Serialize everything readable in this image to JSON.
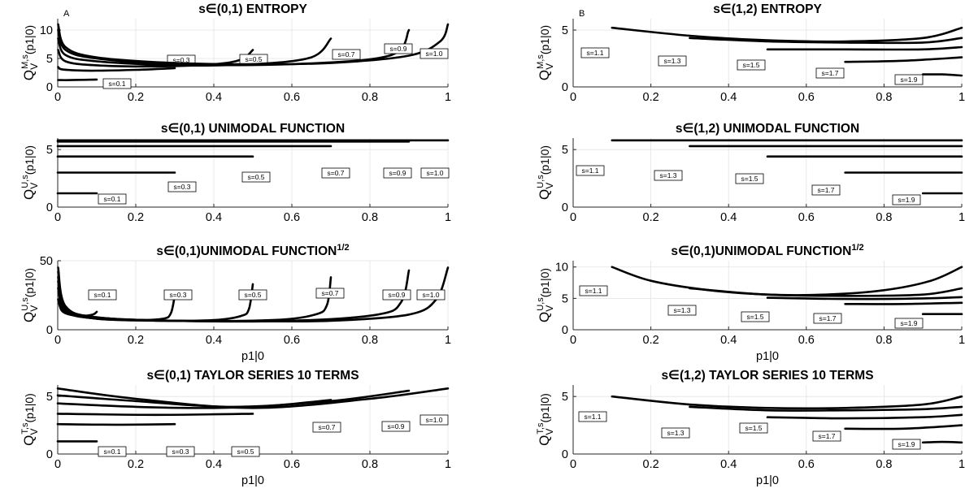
{
  "chart_data": [
    {
      "type": "line",
      "panel_label": "A",
      "title": "s∈(0,1) ENTROPY",
      "ylabel": "Q_V^{M,s}(p1|0)",
      "ylabel_main": "Q",
      "ylabel_sup": "M,s",
      "ylabel_sub": "V",
      "ylabel_rest": "(p1|0)",
      "xlabel": "",
      "xlim": [
        0,
        1
      ],
      "ylim": [
        0,
        12
      ],
      "xticks": [
        0,
        0.2,
        0.4,
        0.6,
        0.8,
        1
      ],
      "xtick_labels": [
        "0",
        "0.2",
        "0.4",
        "0.6",
        "0.8",
        "1"
      ],
      "yticks": [
        0,
        5,
        10
      ],
      "ytick_labels": [
        "0",
        "5",
        "10"
      ],
      "series": [
        {
          "label": "s=0.1",
          "x": [
            0.001,
            0.01,
            0.03,
            0.06,
            0.1
          ],
          "y": [
            1.2,
            1.2,
            1.2,
            1.25,
            1.3
          ]
        },
        {
          "label": "s=0.3",
          "x": [
            0.001,
            0.01,
            0.05,
            0.1,
            0.2,
            0.3
          ],
          "y": [
            3.5,
            3.1,
            2.9,
            2.85,
            3.0,
            3.3
          ]
        },
        {
          "label": "s=0.5",
          "x": [
            0.001,
            0.02,
            0.1,
            0.25,
            0.4,
            0.47,
            0.5
          ],
          "y": [
            6.5,
            4.5,
            3.8,
            3.6,
            4.0,
            4.8,
            6.5
          ]
        },
        {
          "label": "s=0.7",
          "x": [
            0.001,
            0.02,
            0.1,
            0.3,
            0.5,
            0.65,
            0.7
          ],
          "y": [
            8.5,
            5.6,
            4.5,
            3.8,
            4.0,
            5.2,
            8.5
          ]
        },
        {
          "label": "s=0.9",
          "x": [
            0.001,
            0.02,
            0.1,
            0.3,
            0.6,
            0.85,
            0.9
          ],
          "y": [
            10.0,
            6.5,
            5.0,
            4.0,
            4.0,
            5.5,
            10.0
          ]
        },
        {
          "label": "s=1.0",
          "x": [
            0.001,
            0.02,
            0.1,
            0.3,
            0.5,
            0.7,
            0.9,
            0.98,
            1.0
          ],
          "y": [
            11.0,
            7.0,
            5.2,
            4.2,
            4.0,
            4.2,
            5.5,
            8.0,
            11.0
          ]
        }
      ]
    },
    {
      "type": "line",
      "panel_label": "B",
      "title": "s∈(1,2) ENTROPY",
      "ylabel": "Q_V^{M,s}(p1|0)",
      "ylabel_main": "Q",
      "ylabel_sup": "M,s",
      "ylabel_sub": "V",
      "ylabel_rest": "(p1|0)",
      "xlabel": "",
      "xlim": [
        0,
        1
      ],
      "ylim": [
        0,
        6
      ],
      "xticks": [
        0,
        0.2,
        0.4,
        0.6,
        0.8,
        1
      ],
      "xtick_labels": [
        "0",
        "0.2",
        "0.4",
        "0.6",
        "0.8",
        "1"
      ],
      "yticks": [
        0,
        5
      ],
      "ytick_labels": [
        "0",
        "5"
      ],
      "series": [
        {
          "label": "s=1.1",
          "x": [
            0.1,
            0.3,
            0.5,
            0.7,
            0.9,
            1.0
          ],
          "y": [
            5.2,
            4.5,
            4.1,
            4.0,
            4.3,
            5.2
          ]
        },
        {
          "label": "s=1.3",
          "x": [
            0.3,
            0.5,
            0.7,
            0.9,
            1.0
          ],
          "y": [
            4.3,
            4.0,
            3.9,
            3.9,
            4.3
          ]
        },
        {
          "label": "s=1.5",
          "x": [
            0.5,
            0.7,
            0.9,
            1.0
          ],
          "y": [
            3.3,
            3.3,
            3.3,
            3.5
          ]
        },
        {
          "label": "s=1.7",
          "x": [
            0.7,
            0.85,
            1.0
          ],
          "y": [
            2.2,
            2.3,
            2.6
          ]
        },
        {
          "label": "s=1.9",
          "x": [
            0.9,
            0.95,
            1.0
          ],
          "y": [
            1.1,
            1.1,
            1.0
          ]
        }
      ]
    },
    {
      "type": "line",
      "panel_label": "",
      "title": "s∈(0,1) UNIMODAL FUNCTION",
      "ylabel": "Q_V^{U,s}(p1|0)",
      "ylabel_main": "Q",
      "ylabel_sup": "U,s",
      "ylabel_sub": "V",
      "ylabel_rest": "(p1|0)",
      "xlabel": "",
      "xlim": [
        0,
        1
      ],
      "ylim": [
        0,
        6
      ],
      "xticks": [
        0,
        0.2,
        0.4,
        0.6,
        0.8,
        1
      ],
      "xtick_labels": [
        "0",
        "0.2",
        "0.4",
        "0.6",
        "0.8",
        "1"
      ],
      "yticks": [
        0,
        5
      ],
      "ytick_labels": [
        "0",
        "5"
      ],
      "series": [
        {
          "label": "s=0.1",
          "x": [
            0,
            0.1
          ],
          "y": [
            1.2,
            1.2
          ]
        },
        {
          "label": "s=0.3",
          "x": [
            0,
            0.3
          ],
          "y": [
            3.0,
            3.0
          ]
        },
        {
          "label": "s=0.5",
          "x": [
            0,
            0.5
          ],
          "y": [
            4.4,
            4.4
          ]
        },
        {
          "label": "s=0.7",
          "x": [
            0,
            0.7
          ],
          "y": [
            5.3,
            5.3
          ]
        },
        {
          "label": "s=0.9",
          "x": [
            0,
            0.9
          ],
          "y": [
            5.7,
            5.7
          ]
        },
        {
          "label": "s=1.0",
          "x": [
            0,
            1.0
          ],
          "y": [
            5.8,
            5.8
          ]
        }
      ]
    },
    {
      "type": "line",
      "panel_label": "",
      "title": "s∈(1,2) UNIMODAL FUNCTION",
      "ylabel": "Q_V^{U,s}(p1|0)",
      "ylabel_main": "Q",
      "ylabel_sup": "U,s",
      "ylabel_sub": "V",
      "ylabel_rest": "(p1|0)",
      "xlabel": "",
      "xlim": [
        0,
        1
      ],
      "ylim": [
        0,
        6
      ],
      "xticks": [
        0,
        0.2,
        0.4,
        0.6,
        0.8,
        1
      ],
      "xtick_labels": [
        "0",
        "0.2",
        "0.4",
        "0.6",
        "0.8",
        "1"
      ],
      "yticks": [
        0,
        5
      ],
      "ytick_labels": [
        "0",
        "5"
      ],
      "series": [
        {
          "label": "s=1.1",
          "x": [
            0.1,
            1.0
          ],
          "y": [
            5.8,
            5.8
          ]
        },
        {
          "label": "s=1.3",
          "x": [
            0.3,
            1.0
          ],
          "y": [
            5.3,
            5.3
          ]
        },
        {
          "label": "s=1.5",
          "x": [
            0.5,
            1.0
          ],
          "y": [
            4.4,
            4.4
          ]
        },
        {
          "label": "s=1.7",
          "x": [
            0.7,
            1.0
          ],
          "y": [
            3.0,
            3.0
          ]
        },
        {
          "label": "s=1.9",
          "x": [
            0.9,
            1.0
          ],
          "y": [
            1.2,
            1.2
          ]
        }
      ]
    },
    {
      "type": "line",
      "panel_label": "",
      "title": "s∈(0,1)UNIMODAL FUNCTION",
      "title_sup": "1/2",
      "ylabel": "Q_V^{U,s}(p1|0)",
      "ylabel_main": "Q",
      "ylabel_sup": "U,s",
      "ylabel_sub": "V",
      "ylabel_rest": "(p1|0)",
      "xlabel": "p1|0",
      "xlim": [
        0,
        1
      ],
      "ylim": [
        0,
        50
      ],
      "xticks": [
        0,
        0.2,
        0.4,
        0.6,
        0.8,
        1
      ],
      "xtick_labels": [
        "0",
        "0.2",
        "0.4",
        "0.6",
        "0.8",
        "1"
      ],
      "yticks": [
        0,
        50
      ],
      "ytick_labels": [
        "0",
        "50"
      ],
      "series": [
        {
          "label": "s=0.1",
          "x": [
            0.001,
            0.01,
            0.03,
            0.06,
            0.09,
            0.1
          ],
          "y": [
            22,
            14,
            11,
            10,
            11,
            13
          ]
        },
        {
          "label": "s=0.3",
          "x": [
            0.001,
            0.02,
            0.1,
            0.2,
            0.27,
            0.29,
            0.3
          ],
          "y": [
            30,
            13,
            8,
            7,
            8,
            12,
            25
          ]
        },
        {
          "label": "s=0.5",
          "x": [
            0.001,
            0.02,
            0.1,
            0.25,
            0.4,
            0.47,
            0.49,
            0.5
          ],
          "y": [
            35,
            14,
            8,
            6.5,
            7,
            10,
            15,
            33
          ]
        },
        {
          "label": "s=0.7",
          "x": [
            0.001,
            0.02,
            0.1,
            0.3,
            0.55,
            0.66,
            0.69,
            0.7
          ],
          "y": [
            38,
            15,
            8.5,
            6.5,
            7,
            11,
            18,
            38
          ]
        },
        {
          "label": "s=0.9",
          "x": [
            0.001,
            0.02,
            0.1,
            0.3,
            0.6,
            0.82,
            0.88,
            0.9
          ],
          "y": [
            42,
            16,
            9,
            6.5,
            6.5,
            11,
            20,
            43
          ]
        },
        {
          "label": "s=1.0",
          "x": [
            0.001,
            0.02,
            0.1,
            0.3,
            0.5,
            0.7,
            0.9,
            0.97,
            1.0
          ],
          "y": [
            45,
            17,
            9,
            6.5,
            6.2,
            6.5,
            11,
            22,
            45
          ]
        }
      ]
    },
    {
      "type": "line",
      "panel_label": "",
      "title": "s∈(0,1)UNIMODAL FUNCTION",
      "title_sup": "1/2",
      "ylabel": "Q_V^{U,s}(p1|0)",
      "ylabel_main": "Q",
      "ylabel_sup": "U,s",
      "ylabel_sub": "V",
      "ylabel_rest": "(p1|0)",
      "xlabel": "p1|0",
      "xlim": [
        0,
        1
      ],
      "ylim": [
        0,
        11
      ],
      "xticks": [
        0,
        0.2,
        0.4,
        0.6,
        0.8,
        1
      ],
      "xtick_labels": [
        "0",
        "0.2",
        "0.4",
        "0.6",
        "0.8",
        "1"
      ],
      "yticks": [
        0,
        5,
        10
      ],
      "ytick_labels": [
        "0",
        "5",
        "10"
      ],
      "series": [
        {
          "label": "s=1.1",
          "x": [
            0.1,
            0.2,
            0.35,
            0.5,
            0.65,
            0.8,
            0.92,
            1.0
          ],
          "y": [
            10,
            7.8,
            6.3,
            5.6,
            5.6,
            6.3,
            7.8,
            10
          ]
        },
        {
          "label": "s=1.3",
          "x": [
            0.3,
            0.5,
            0.7,
            0.9,
            1.0
          ],
          "y": [
            6.6,
            5.6,
            5.4,
            5.6,
            6.6
          ]
        },
        {
          "label": "s=1.5",
          "x": [
            0.5,
            0.7,
            0.9,
            1.0
          ],
          "y": [
            5.1,
            4.9,
            5.0,
            5.2
          ]
        },
        {
          "label": "s=1.7",
          "x": [
            0.7,
            0.85,
            1.0
          ],
          "y": [
            4.1,
            4.1,
            4.3
          ]
        },
        {
          "label": "s=1.9",
          "x": [
            0.9,
            0.95,
            1.0
          ],
          "y": [
            2.5,
            2.5,
            2.5
          ]
        }
      ]
    },
    {
      "type": "line",
      "panel_label": "",
      "title": "s∈(0,1) TAYLOR SERIES 10 TERMS",
      "ylabel": "Q_V^{T,s}(p1|0)",
      "ylabel_main": "Q",
      "ylabel_sup": "T,s",
      "ylabel_sub": "V",
      "ylabel_rest": "(p1|0)",
      "xlabel": "p1|0",
      "xlim": [
        0,
        1
      ],
      "ylim": [
        0,
        6
      ],
      "xticks": [
        0,
        0.2,
        0.4,
        0.6,
        0.8,
        1
      ],
      "xtick_labels": [
        "0",
        "0.2",
        "0.4",
        "0.6",
        "0.8",
        "1"
      ],
      "yticks": [
        0,
        5
      ],
      "ytick_labels": [
        "0",
        "5"
      ],
      "series": [
        {
          "label": "s=0.1",
          "x": [
            0,
            0.1
          ],
          "y": [
            1.1,
            1.1
          ]
        },
        {
          "label": "s=0.3",
          "x": [
            0,
            0.15,
            0.3
          ],
          "y": [
            2.6,
            2.55,
            2.6
          ]
        },
        {
          "label": "s=0.5",
          "x": [
            0,
            0.25,
            0.5
          ],
          "y": [
            3.5,
            3.4,
            3.5
          ]
        },
        {
          "label": "s=0.7",
          "x": [
            0,
            0.2,
            0.4,
            0.55,
            0.7
          ],
          "y": [
            4.4,
            4.1,
            4.0,
            4.2,
            4.7
          ]
        },
        {
          "label": "s=0.9",
          "x": [
            0,
            0.2,
            0.45,
            0.7,
            0.9
          ],
          "y": [
            5.1,
            4.6,
            4.1,
            4.6,
            5.5
          ]
        },
        {
          "label": "s=1.0",
          "x": [
            0,
            0.2,
            0.5,
            0.8,
            1.0
          ],
          "y": [
            5.7,
            4.8,
            4.0,
            4.8,
            5.7
          ]
        }
      ]
    },
    {
      "type": "line",
      "panel_label": "",
      "title": "s∈(1,2) TAYLOR SERIES 10 TERMS",
      "ylabel": "Q_V^{T,s}(p1|0)",
      "ylabel_main": "Q",
      "ylabel_sup": "T,s",
      "ylabel_sub": "V",
      "ylabel_rest": "(p1|0)",
      "xlabel": "p1|0",
      "xlim": [
        0,
        1
      ],
      "ylim": [
        0,
        6
      ],
      "xticks": [
        0,
        0.2,
        0.4,
        0.6,
        0.8,
        1
      ],
      "xtick_labels": [
        "0",
        "0.2",
        "0.4",
        "0.6",
        "0.8",
        "1"
      ],
      "yticks": [
        0,
        5
      ],
      "ytick_labels": [
        "0",
        "5"
      ],
      "series": [
        {
          "label": "s=1.1",
          "x": [
            0.1,
            0.3,
            0.5,
            0.7,
            0.9,
            1.0
          ],
          "y": [
            5.0,
            4.3,
            4.0,
            4.0,
            4.3,
            5.0
          ]
        },
        {
          "label": "s=1.3",
          "x": [
            0.3,
            0.5,
            0.7,
            0.9,
            1.0
          ],
          "y": [
            4.1,
            3.8,
            3.8,
            3.9,
            4.1
          ]
        },
        {
          "label": "s=1.5",
          "x": [
            0.5,
            0.7,
            0.9,
            1.0
          ],
          "y": [
            3.2,
            3.1,
            3.2,
            3.4
          ]
        },
        {
          "label": "s=1.7",
          "x": [
            0.7,
            0.85,
            1.0
          ],
          "y": [
            2.2,
            2.2,
            2.5
          ]
        },
        {
          "label": "s=1.9",
          "x": [
            0.9,
            0.95,
            1.0
          ],
          "y": [
            1.0,
            1.05,
            1.0
          ]
        }
      ]
    }
  ]
}
